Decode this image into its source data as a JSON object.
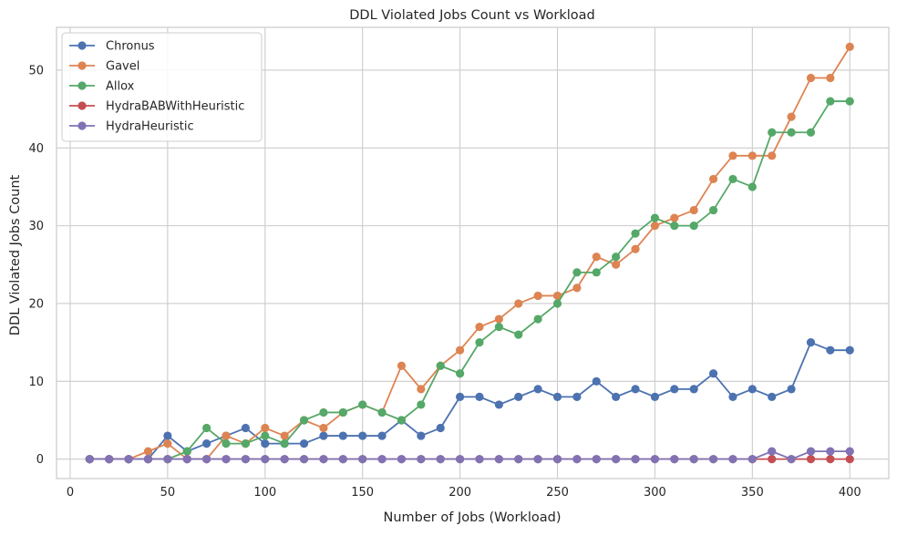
{
  "chart_data": {
    "type": "line",
    "title": "DDL Violated Jobs Count vs Workload",
    "xlabel": "Number of Jobs (Workload)",
    "ylabel": "DDL Violated Jobs Count",
    "xlim": [
      -7,
      420
    ],
    "ylim": [
      -2.5,
      55.5
    ],
    "xticks": [
      0,
      50,
      100,
      150,
      200,
      250,
      300,
      350,
      400
    ],
    "yticks": [
      0,
      10,
      20,
      30,
      40,
      50
    ],
    "grid": true,
    "legend_position": "upper-left",
    "x": [
      10,
      20,
      30,
      40,
      50,
      60,
      70,
      80,
      90,
      100,
      110,
      120,
      130,
      140,
      150,
      160,
      170,
      180,
      190,
      200,
      210,
      220,
      230,
      240,
      250,
      260,
      270,
      280,
      290,
      300,
      310,
      320,
      330,
      340,
      350,
      360,
      370,
      380,
      390,
      400
    ],
    "series": [
      {
        "name": "Chronus",
        "color": "#4c72b0",
        "values": [
          0,
          0,
          0,
          0,
          3,
          1,
          2,
          3,
          4,
          2,
          2,
          2,
          3,
          3,
          3,
          3,
          5,
          3,
          4,
          8,
          8,
          7,
          8,
          9,
          8,
          8,
          10,
          8,
          9,
          8,
          9,
          9,
          11,
          8,
          9,
          8,
          9,
          15,
          14,
          14
        ]
      },
      {
        "name": "Gavel",
        "color": "#dd8452",
        "values": [
          0,
          0,
          0,
          1,
          2,
          0,
          0,
          3,
          2,
          4,
          3,
          5,
          4,
          6,
          7,
          6,
          12,
          9,
          12,
          14,
          17,
          18,
          20,
          21,
          21,
          22,
          26,
          25,
          27,
          30,
          31,
          32,
          36,
          39,
          39,
          39,
          44,
          49,
          49,
          53
        ]
      },
      {
        "name": "Allox",
        "color": "#55a868",
        "values": [
          0,
          0,
          0,
          0,
          0,
          1,
          4,
          2,
          2,
          3,
          2,
          5,
          6,
          6,
          7,
          6,
          5,
          7,
          12,
          11,
          15,
          17,
          16,
          18,
          20,
          24,
          24,
          26,
          29,
          31,
          30,
          30,
          32,
          36,
          35,
          42,
          42,
          42,
          46,
          46
        ]
      },
      {
        "name": "HydraBABWithHeuristic",
        "color": "#c44e52",
        "values": [
          0,
          0,
          0,
          0,
          0,
          0,
          0,
          0,
          0,
          0,
          0,
          0,
          0,
          0,
          0,
          0,
          0,
          0,
          0,
          0,
          0,
          0,
          0,
          0,
          0,
          0,
          0,
          0,
          0,
          0,
          0,
          0,
          0,
          0,
          0,
          0,
          0,
          0,
          0,
          0
        ]
      },
      {
        "name": "HydraHeuristic",
        "color": "#8172b3",
        "values": [
          0,
          0,
          0,
          0,
          0,
          0,
          0,
          0,
          0,
          0,
          0,
          0,
          0,
          0,
          0,
          0,
          0,
          0,
          0,
          0,
          0,
          0,
          0,
          0,
          0,
          0,
          0,
          0,
          0,
          0,
          0,
          0,
          0,
          0,
          0,
          1,
          0,
          1,
          1,
          1
        ]
      }
    ]
  }
}
